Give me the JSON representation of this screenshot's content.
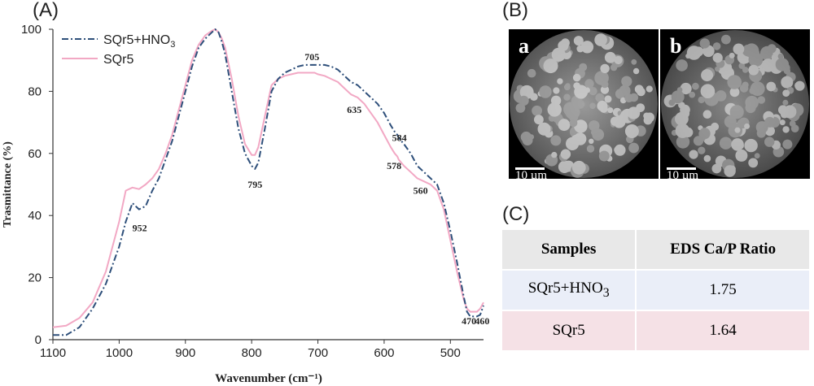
{
  "panels": {
    "a": "(A)",
    "b": "(B)",
    "c": "(C)"
  },
  "chart_data": {
    "type": "line",
    "xlabel": "Wavenumber (cm⁻¹)",
    "ylabel": "Trasmittance (%)",
    "xlim": [
      1100,
      450
    ],
    "ylim": [
      0,
      100
    ],
    "xticks": [
      1100,
      1000,
      900,
      800,
      700,
      600,
      500
    ],
    "yticks": [
      0,
      20,
      40,
      60,
      80,
      100
    ],
    "legend_position": "top-left",
    "series": [
      {
        "name": "SQr5+HNO3",
        "color": "#2e4f7a",
        "dash": "dashdot",
        "x": [
          1100,
          1080,
          1060,
          1040,
          1020,
          1000,
          990,
          980,
          970,
          960,
          950,
          940,
          930,
          920,
          910,
          900,
          890,
          880,
          870,
          860,
          855,
          850,
          845,
          840,
          830,
          820,
          810,
          800,
          795,
          790,
          780,
          770,
          760,
          750,
          740,
          730,
          720,
          710,
          705,
          700,
          690,
          680,
          670,
          660,
          650,
          640,
          635,
          630,
          620,
          610,
          600,
          590,
          584,
          580,
          578,
          570,
          560,
          550,
          540,
          530,
          520,
          510,
          500,
          490,
          480,
          475,
          470,
          465,
          460,
          455,
          450
        ],
        "y": [
          1.5,
          1.5,
          4,
          10,
          18,
          30,
          38,
          44,
          42,
          43,
          48,
          52,
          58,
          64,
          72,
          80,
          88,
          94,
          97,
          99,
          100,
          99,
          96,
          92,
          80,
          68,
          60,
          56,
          55,
          57,
          68,
          80,
          84,
          86,
          87,
          88,
          88.5,
          88.5,
          88.5,
          88.5,
          88.5,
          88,
          87,
          85,
          83,
          82,
          81,
          80,
          78,
          76,
          73,
          69,
          67,
          66,
          65,
          63,
          60,
          56,
          54,
          52,
          50,
          44,
          35,
          25,
          14,
          9,
          7.5,
          7.5,
          7.5,
          8,
          11
        ]
      },
      {
        "name": "SQr5",
        "color": "#f2a8c4",
        "dash": "solid",
        "x": [
          1100,
          1080,
          1060,
          1040,
          1020,
          1000,
          990,
          980,
          970,
          960,
          950,
          940,
          930,
          920,
          910,
          900,
          890,
          880,
          870,
          860,
          855,
          850,
          845,
          840,
          830,
          820,
          810,
          800,
          795,
          790,
          780,
          770,
          760,
          750,
          740,
          730,
          720,
          710,
          705,
          700,
          690,
          680,
          670,
          660,
          650,
          640,
          635,
          630,
          620,
          610,
          600,
          590,
          584,
          580,
          578,
          570,
          560,
          550,
          540,
          530,
          520,
          510,
          500,
          490,
          480,
          475,
          470,
          465,
          460,
          455,
          450
        ],
        "y": [
          4,
          4.5,
          7,
          12,
          22,
          38,
          48,
          49,
          48.5,
          50,
          52,
          55,
          60,
          66,
          74,
          82,
          90,
          95,
          98,
          99.5,
          100,
          99,
          97,
          94,
          84,
          72,
          63,
          59.5,
          59.5,
          62,
          72,
          82,
          84,
          85,
          85.5,
          86,
          86,
          86,
          86,
          85.5,
          85,
          84,
          83,
          81,
          79,
          78,
          77,
          76,
          73,
          70,
          66,
          62,
          60,
          59,
          58,
          56,
          54,
          52,
          51,
          50,
          48,
          42,
          32,
          22,
          13,
          10,
          9,
          9,
          9,
          10,
          12
        ]
      }
    ],
    "annotations": [
      "952",
      "795",
      "705",
      "635",
      "584",
      "578",
      "560",
      "470",
      "460"
    ]
  },
  "sem": [
    {
      "letter": "a",
      "scale": "10 µm"
    },
    {
      "letter": "b",
      "scale": "10 µm"
    }
  ],
  "table": {
    "headers": [
      "Samples",
      "EDS Ca/P Ratio"
    ],
    "rows": [
      {
        "sample_main": "SQr5+HNO",
        "sample_sub": "3",
        "ratio": "1.75"
      },
      {
        "sample_main": "SQr5",
        "sample_sub": "",
        "ratio": "1.64"
      }
    ]
  }
}
